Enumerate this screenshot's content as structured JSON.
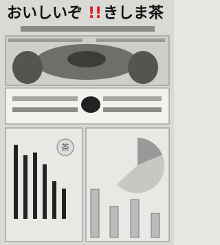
{
  "poster": {
    "title_main": "おいしいぞ",
    "title_mark": "!!",
    "title_name": "きしま茶",
    "tea_label": "茶",
    "bar_chart": {
      "type": "bar",
      "values": [
        88,
        76,
        79,
        65,
        45,
        36
      ],
      "color": "#222222",
      "ylim": [
        0,
        100
      ]
    }
  }
}
